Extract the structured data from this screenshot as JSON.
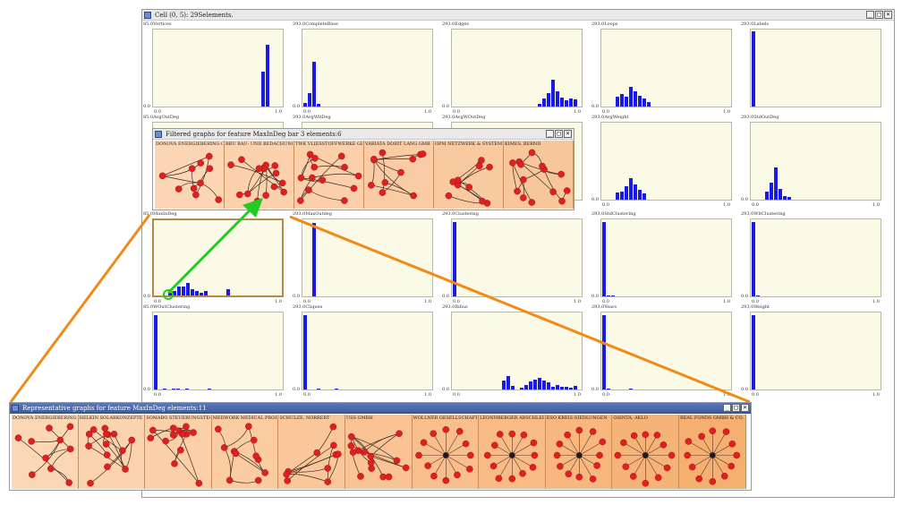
{
  "main_window": {
    "title": "Cell (0, 5): 29Selements."
  },
  "ui_colors": {
    "plot_bg": "#fbfae6",
    "bar": "#1a1ae6",
    "node": "#e02020",
    "orange": "#f08a18",
    "green": "#22cc22"
  },
  "grid": [
    [
      {
        "ymax": "85.0",
        "name": "Vertices",
        "x0": "0.0",
        "x1": "1.0",
        "hist": [
          0,
          0,
          0,
          0,
          0,
          0,
          0,
          0,
          0,
          0,
          0,
          0,
          0,
          0,
          0,
          0,
          0,
          0,
          0,
          0,
          0,
          0,
          0,
          0,
          0.45,
          0.8,
          0,
          0,
          0
        ]
      },
      {
        "ymax": "293.0",
        "name": "CompleteBase",
        "x0": "0.0",
        "x1": "1.0",
        "hist": [
          0.05,
          0.18,
          0.58,
          0.03,
          0,
          0,
          0,
          0,
          0,
          0,
          0,
          0,
          0,
          0,
          0,
          0,
          0,
          0,
          0,
          0,
          0,
          0,
          0,
          0,
          0,
          0,
          0,
          0,
          0
        ]
      },
      {
        "ymax": "293.0",
        "name": "Edges",
        "x0": "0.0",
        "x1": "1.0",
        "hist": [
          0,
          0,
          0,
          0,
          0,
          0,
          0,
          0,
          0,
          0,
          0,
          0,
          0,
          0,
          0,
          0,
          0,
          0,
          0,
          0.04,
          0.1,
          0.18,
          0.35,
          0.2,
          0.12,
          0.08,
          0.1,
          0.09,
          0
        ]
      },
      {
        "ymax": "293.0",
        "name": "Loops",
        "x0": "0.0",
        "x1": "1.0",
        "hist": [
          0,
          0,
          0,
          0.13,
          0.16,
          0.13,
          0.26,
          0.2,
          0.14,
          0.1,
          0.06,
          0,
          0,
          0,
          0,
          0,
          0,
          0,
          0,
          0,
          0,
          0,
          0,
          0,
          0,
          0,
          0,
          0,
          0
        ]
      },
      {
        "ymax": "293.0",
        "name": "Labels",
        "x0": "",
        "x1": "",
        "hist": [
          0.98,
          0,
          0,
          0,
          0,
          0,
          0,
          0,
          0,
          0,
          0,
          0,
          0,
          0,
          0,
          0,
          0,
          0,
          0,
          0,
          0,
          0,
          0,
          0,
          0,
          0,
          0,
          0,
          0
        ]
      }
    ],
    [
      {
        "ymax": "85.0",
        "name": "AvgOutDeg",
        "x0": "",
        "x1": "",
        "hist": []
      },
      {
        "ymax": "293.0",
        "name": "AvgWltDeg",
        "x0": "",
        "x1": "",
        "hist": []
      },
      {
        "ymax": "293.0",
        "name": "AvgWOutDeg",
        "x0": "",
        "x1": "",
        "hist": []
      },
      {
        "ymax": "293.0",
        "name": "AvgWeight",
        "x0": "0.0",
        "x1": "1.0",
        "hist": [
          0,
          0,
          0,
          0.09,
          0.1,
          0.17,
          0.28,
          0.2,
          0.13,
          0.08,
          0,
          0,
          0,
          0,
          0,
          0,
          0,
          0,
          0,
          0,
          0,
          0,
          0,
          0,
          0,
          0,
          0,
          0,
          0
        ]
      },
      {
        "ymax": "293.0",
        "name": "StdOutDeg",
        "x0": "0.0",
        "x1": "1.0",
        "hist": [
          0,
          0,
          0,
          0.1,
          0.22,
          0.42,
          0.14,
          0.05,
          0.03,
          0,
          0,
          0,
          0,
          0,
          0,
          0,
          0,
          0,
          0,
          0,
          0,
          0,
          0,
          0,
          0,
          0,
          0,
          0,
          0
        ]
      }
    ],
    [
      {
        "ymax": "85.0",
        "name": "MaxInDeg",
        "x0": "0.0",
        "x1": "1.0",
        "hist": [
          0,
          0,
          0,
          0.03,
          0.06,
          0.12,
          0.12,
          0.16,
          0.08,
          0.06,
          0.04,
          0.06,
          0,
          0,
          0,
          0,
          0.08,
          0,
          0,
          0,
          0,
          0,
          0,
          0,
          0,
          0,
          0,
          0,
          0
        ],
        "highlight": true
      },
      {
        "ymax": "293.0",
        "name": "MaxOutdeg",
        "x0": "0.0",
        "x1": "1.0",
        "hist": [
          0,
          0,
          0.95,
          0,
          0,
          0,
          0,
          0,
          0,
          0,
          0,
          0,
          0,
          0,
          0,
          0,
          0,
          0,
          0,
          0,
          0,
          0,
          0,
          0,
          0,
          0,
          0,
          0,
          0
        ]
      },
      {
        "ymax": "293.0",
        "name": "Clustering",
        "x0": "0.0",
        "x1": "1.0",
        "hist": [
          0.96,
          0,
          0,
          0,
          0,
          0,
          0,
          0,
          0,
          0,
          0,
          0,
          0,
          0,
          0,
          0,
          0,
          0,
          0,
          0,
          0,
          0,
          0,
          0,
          0,
          0,
          0,
          0,
          0
        ]
      },
      {
        "ymax": "293.0",
        "name": "StdClustering",
        "x0": "0.0",
        "x1": "1.0",
        "hist": [
          0.96,
          0.01,
          0.01,
          0,
          0,
          0,
          0,
          0,
          0,
          0,
          0,
          0,
          0,
          0,
          0,
          0,
          0,
          0,
          0,
          0,
          0,
          0,
          0,
          0,
          0,
          0,
          0,
          0,
          0
        ]
      },
      {
        "ymax": "293.0",
        "name": "WltClustering",
        "x0": "0.0",
        "x1": "1.0",
        "hist": [
          0.96,
          0.01,
          0,
          0,
          0,
          0,
          0,
          0,
          0,
          0,
          0,
          0,
          0,
          0,
          0,
          0,
          0,
          0,
          0,
          0,
          0,
          0,
          0,
          0,
          0,
          0,
          0,
          0,
          0
        ]
      }
    ],
    [
      {
        "ymax": "85.0",
        "name": "WOutClustering",
        "x0": "0.0",
        "x1": "1.0",
        "hist": [
          0.96,
          0,
          0.01,
          0,
          0.01,
          0.01,
          0,
          0.01,
          0,
          0,
          0,
          0,
          0.01,
          0,
          0,
          0,
          0,
          0,
          0,
          0,
          0,
          0,
          0,
          0,
          0,
          0,
          0,
          0,
          0
        ]
      },
      {
        "ymax": "293.0",
        "name": "Cliques",
        "x0": "0.0",
        "x1": "1.0",
        "hist": [
          0.96,
          0,
          0,
          0.01,
          0,
          0,
          0,
          0.01,
          0,
          0,
          0,
          0,
          0,
          0,
          0,
          0,
          0,
          0,
          0,
          0,
          0,
          0,
          0,
          0,
          0,
          0,
          0,
          0,
          0
        ]
      },
      {
        "ymax": "293.0",
        "name": "Rdius",
        "x0": "0.0",
        "x1": "1.0",
        "hist": [
          0,
          0,
          0,
          0,
          0,
          0,
          0,
          0,
          0,
          0,
          0,
          0.12,
          0.18,
          0.05,
          0,
          0.02,
          0.06,
          0.1,
          0.13,
          0.15,
          0.12,
          0.09,
          0.04,
          0.06,
          0.03,
          0.04,
          0.02,
          0.05,
          0
        ]
      },
      {
        "ymax": "293.0",
        "name": "Years",
        "x0": "0.0",
        "x1": "1.0",
        "hist": [
          0.96,
          0.01,
          0,
          0,
          0,
          0,
          0.01,
          0,
          0,
          0,
          0,
          0,
          0,
          0,
          0,
          0,
          0,
          0,
          0,
          0,
          0,
          0,
          0,
          0,
          0,
          0,
          0,
          0,
          0
        ]
      },
      {
        "ymax": "293.0",
        "name": "Weight",
        "x0": "0.0",
        "x1": "1.0",
        "hist": [
          0.96,
          0,
          0,
          0,
          0,
          0,
          0,
          0,
          0,
          0,
          0,
          0,
          0,
          0,
          0,
          0,
          0,
          0,
          0,
          0,
          0,
          0,
          0,
          0,
          0,
          0,
          0,
          0,
          0
        ]
      }
    ]
  ],
  "filtered": {
    "title": "Filtered graphs for feature MaxInDeg bar 3 elements:6",
    "items": [
      "DONOVA ENERGIEBERING GMB",
      "BBU BAU- UND BEDACHUNG",
      "TWK VLIESSTOFFWERKE GE",
      "VARIATA DORIT LANG GMB",
      "OPM NETZWERK & SYSTEM",
      "KIMES, BERND"
    ]
  },
  "representative": {
    "title": "Representative graphs for feature MaxInDeg elements:11",
    "items": [
      "DONOVA ENERGIEBERING GM",
      "HELKIN SOLARKONZEPTE",
      "SOMABO STEUERUNGSTECH",
      "MEDWORK MEDICAL PRODU",
      "SCHULZE, NORBERT",
      "USS GMBH",
      "WOLLNER GESELLSCHAFT",
      "LEONNBERGER ABSCHLEPP",
      "ESO KREIS-SIEDLUNGEN",
      "OSINTA, AKLO",
      "REAL FONDS GMBH & CO."
    ]
  }
}
